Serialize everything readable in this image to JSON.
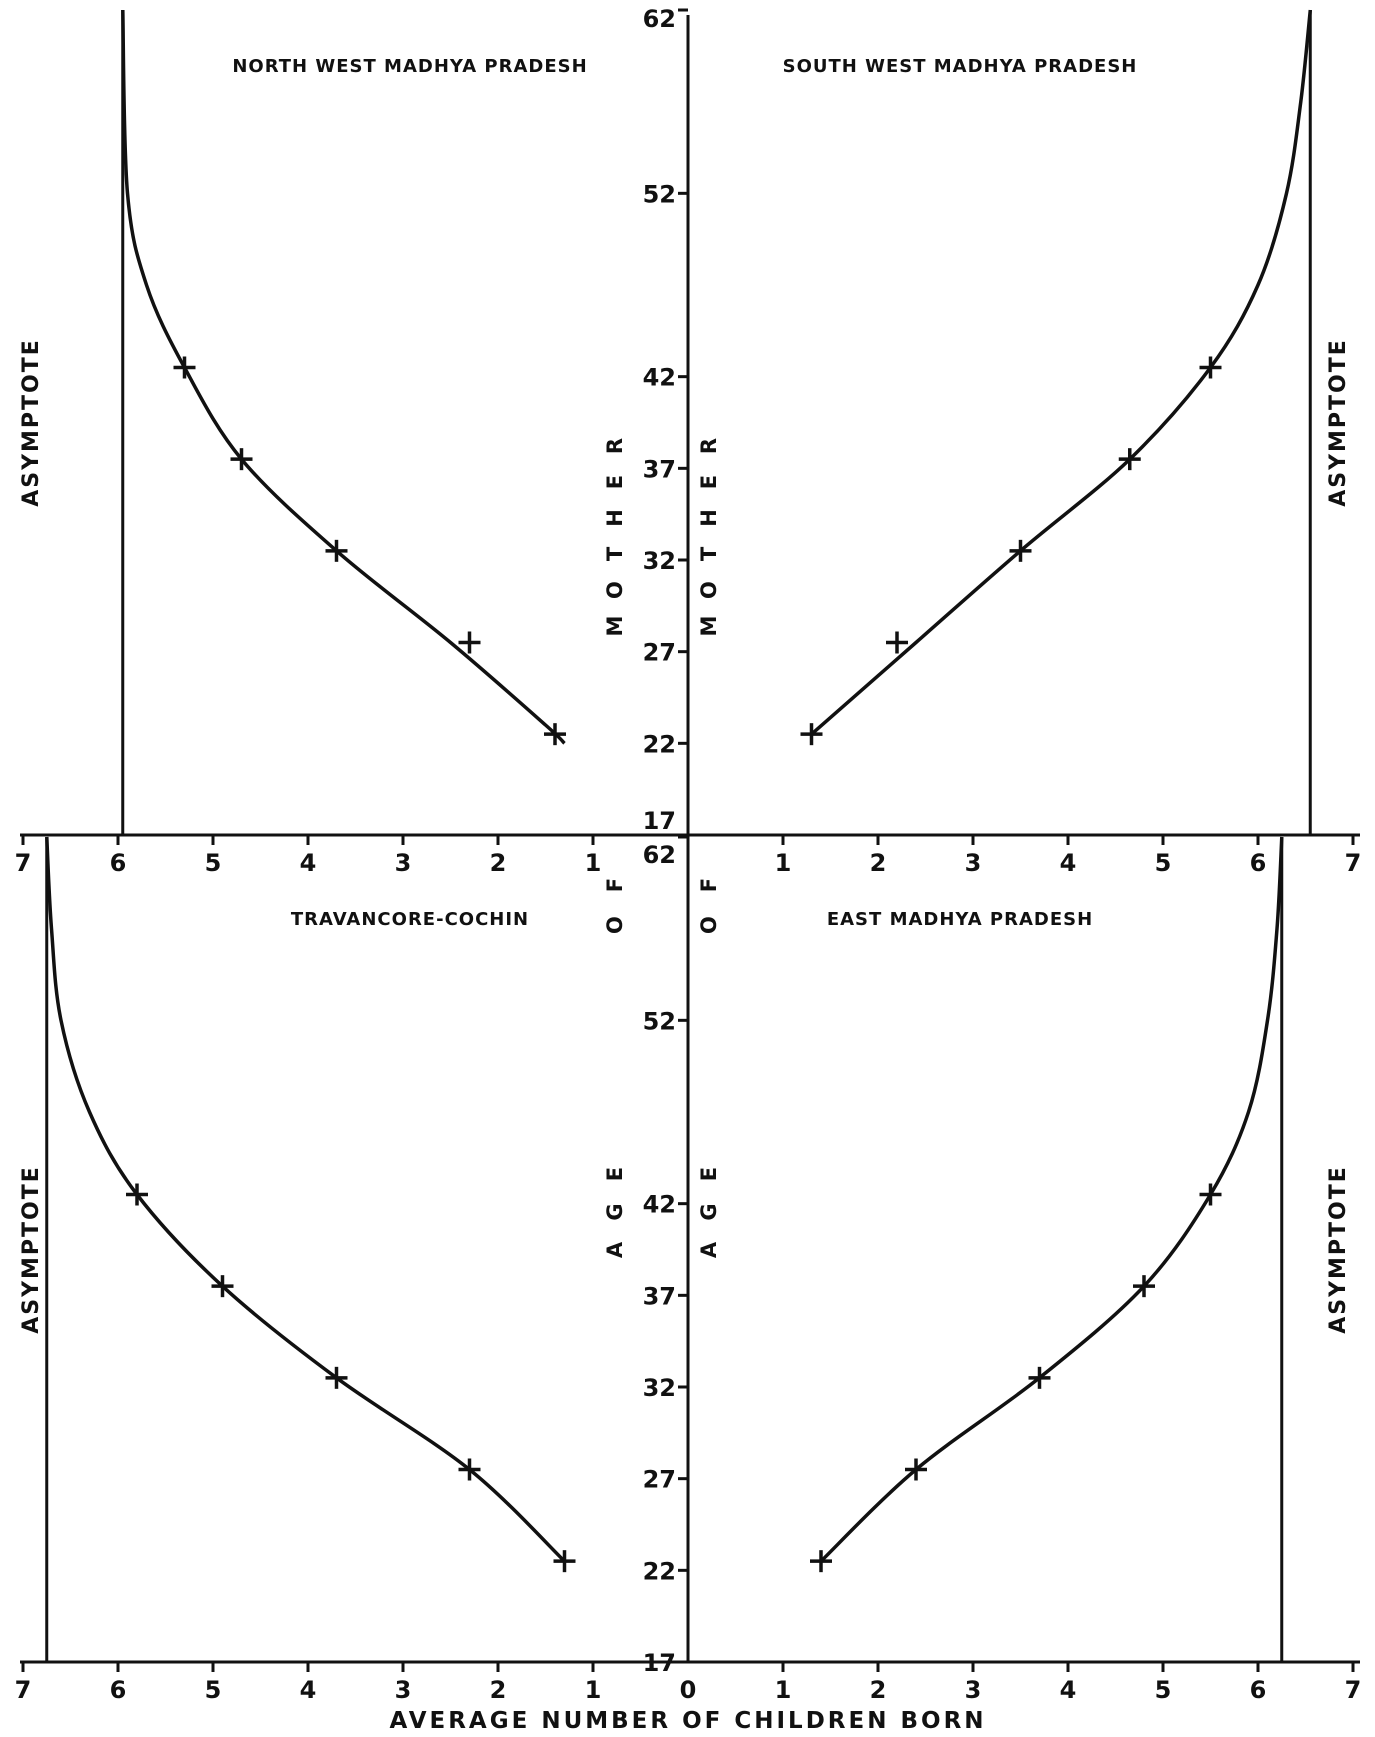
{
  "chart_data": {
    "type": "line",
    "xlabel": "AVERAGE NUMBER OF CHILDREN BORN",
    "vertical_label_upper": [
      "M",
      "O",
      "T",
      "H",
      "E",
      "R"
    ],
    "vertical_label_middle": [
      "O",
      "F"
    ],
    "vertical_label_lower": [
      "A",
      "G",
      "E"
    ],
    "asymptote_label": "ASYMPTOTE",
    "panels": [
      {
        "position": "top-left",
        "title": "NORTH WEST MADHYA PRADESH",
        "x_direction": "reversed",
        "xlim": [
          0,
          7
        ],
        "ylim": [
          17,
          62
        ],
        "asymptote": 5.95,
        "points": [
          {
            "x": 1.4,
            "y": 22.5
          },
          {
            "x": 2.3,
            "y": 27.5
          },
          {
            "x": 3.7,
            "y": 32.5
          },
          {
            "x": 4.7,
            "y": 37.5
          },
          {
            "x": 5.3,
            "y": 42.5
          }
        ],
        "curve": [
          [
            1.3,
            22
          ],
          [
            1.5,
            23
          ],
          [
            2.5,
            27.5
          ],
          [
            3.7,
            32.5
          ],
          [
            4.7,
            37.5
          ],
          [
            5.3,
            42.5
          ],
          [
            5.7,
            47
          ],
          [
            5.9,
            52
          ],
          [
            5.95,
            62
          ]
        ]
      },
      {
        "position": "top-right",
        "title": "SOUTH WEST MADHYA PRADESH",
        "x_direction": "normal",
        "xlim": [
          0,
          7
        ],
        "ylim": [
          17,
          62
        ],
        "asymptote": 6.55,
        "points": [
          {
            "x": 1.3,
            "y": 22.5
          },
          {
            "x": 2.2,
            "y": 27.5
          },
          {
            "x": 3.5,
            "y": 32.5
          },
          {
            "x": 4.65,
            "y": 37.5
          },
          {
            "x": 5.5,
            "y": 42.5
          }
        ],
        "curve": [
          [
            1.3,
            22.5
          ],
          [
            2.4,
            27.5
          ],
          [
            3.5,
            32.5
          ],
          [
            4.65,
            37.5
          ],
          [
            5.5,
            42.5
          ],
          [
            6.0,
            47
          ],
          [
            6.3,
            52
          ],
          [
            6.45,
            57
          ],
          [
            6.55,
            62
          ]
        ]
      },
      {
        "position": "bottom-left",
        "title": "TRAVANCORE-COCHIN",
        "x_direction": "reversed",
        "xlim": [
          0,
          7
        ],
        "ylim": [
          17,
          62
        ],
        "asymptote": 6.75,
        "points": [
          {
            "x": 1.3,
            "y": 22.5
          },
          {
            "x": 2.3,
            "y": 27.5
          },
          {
            "x": 3.7,
            "y": 32.5
          },
          {
            "x": 4.9,
            "y": 37.5
          },
          {
            "x": 5.8,
            "y": 42.5
          }
        ],
        "curve": [
          [
            1.3,
            22.5
          ],
          [
            2.3,
            27.5
          ],
          [
            3.7,
            32.5
          ],
          [
            4.9,
            37.5
          ],
          [
            5.8,
            42.5
          ],
          [
            6.3,
            47
          ],
          [
            6.6,
            52
          ],
          [
            6.7,
            57
          ],
          [
            6.75,
            62
          ]
        ]
      },
      {
        "position": "bottom-right",
        "title": "EAST MADHYA PRADESH",
        "x_direction": "normal",
        "xlim": [
          0,
          7
        ],
        "ylim": [
          17,
          62
        ],
        "asymptote": 6.25,
        "points": [
          {
            "x": 1.4,
            "y": 22.5
          },
          {
            "x": 2.4,
            "y": 27.5
          },
          {
            "x": 3.7,
            "y": 32.5
          },
          {
            "x": 4.8,
            "y": 37.5
          },
          {
            "x": 5.5,
            "y": 42.5
          }
        ],
        "curve": [
          [
            1.4,
            22.5
          ],
          [
            2.4,
            27.5
          ],
          [
            3.7,
            32.5
          ],
          [
            4.8,
            37.5
          ],
          [
            5.5,
            42.5
          ],
          [
            5.9,
            47
          ],
          [
            6.1,
            52
          ],
          [
            6.2,
            57
          ],
          [
            6.25,
            62
          ]
        ]
      }
    ],
    "x_ticks": [
      "0",
      "1",
      "2",
      "3",
      "4",
      "5",
      "6",
      "7"
    ],
    "y_ticks": [
      "17",
      "22",
      "27",
      "32",
      "37",
      "42",
      "52",
      "62"
    ]
  }
}
